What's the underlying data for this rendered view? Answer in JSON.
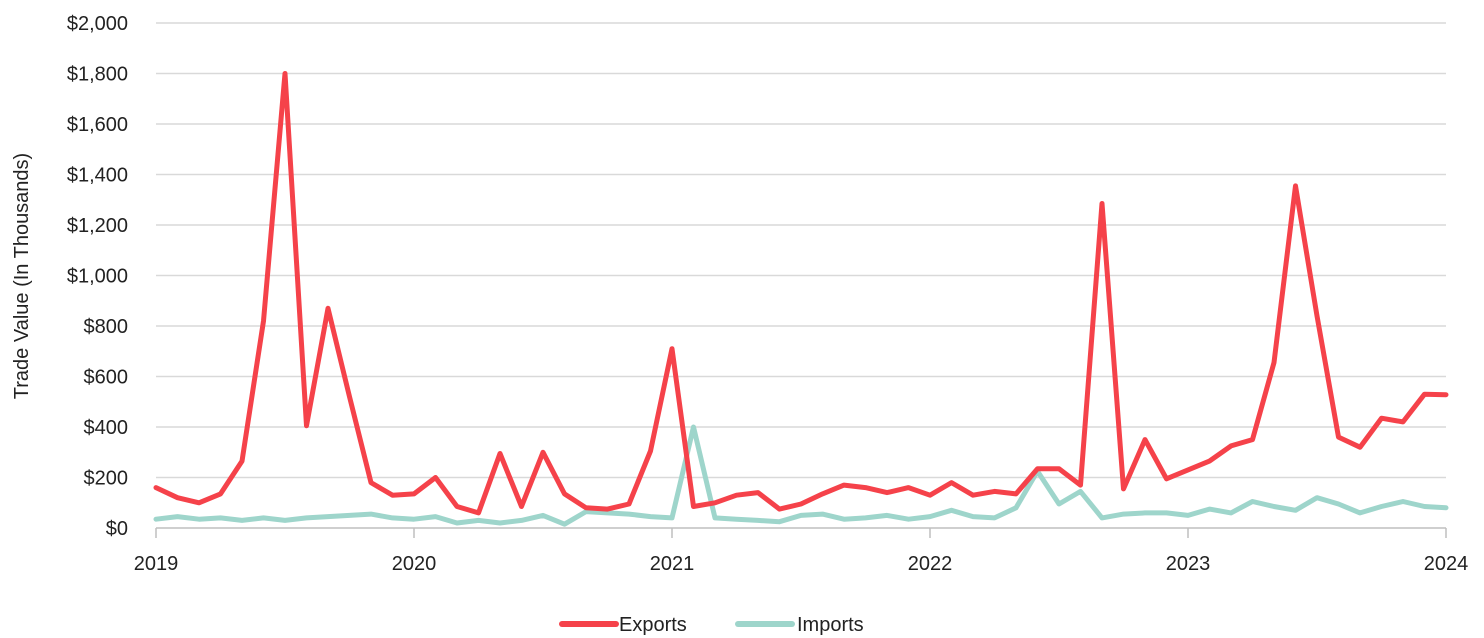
{
  "chart_data": {
    "type": "line",
    "title": "",
    "xlabel": "",
    "ylabel": "Trade Value (In Thousands)",
    "ylim": [
      0,
      2000
    ],
    "yticks": [
      0,
      200,
      400,
      600,
      800,
      1000,
      1200,
      1400,
      1600,
      1800,
      2000
    ],
    "ytick_labels": [
      "$0",
      "$200",
      "$400",
      "$600",
      "$800",
      "$1,000",
      "$1,200",
      "$1,400",
      "$1,600",
      "$1,800",
      "$2,000"
    ],
    "xticks": [
      2019,
      2020,
      2021,
      2022,
      2023,
      2024
    ],
    "xtick_labels": [
      "2019",
      "2020",
      "2021",
      "2022",
      "2023",
      "2024"
    ],
    "xlim": [
      "2019-01",
      "2024-01"
    ],
    "grid": "horizontal",
    "legend_position": "bottom-center",
    "x": [
      "2019-01",
      "2019-02",
      "2019-03",
      "2019-04",
      "2019-05",
      "2019-06",
      "2019-07",
      "2019-08",
      "2019-09",
      "2019-10",
      "2019-11",
      "2019-12",
      "2020-01",
      "2020-02",
      "2020-03",
      "2020-04",
      "2020-05",
      "2020-06",
      "2020-07",
      "2020-08",
      "2020-09",
      "2020-10",
      "2020-11",
      "2020-12",
      "2021-01",
      "2021-02",
      "2021-03",
      "2021-04",
      "2021-05",
      "2021-06",
      "2021-07",
      "2021-08",
      "2021-09",
      "2021-10",
      "2021-11",
      "2021-12",
      "2022-01",
      "2022-02",
      "2022-03",
      "2022-04",
      "2022-05",
      "2022-06",
      "2022-07",
      "2022-08",
      "2022-09",
      "2022-10",
      "2022-11",
      "2022-12",
      "2023-01",
      "2023-02",
      "2023-03",
      "2023-04",
      "2023-05",
      "2023-06",
      "2023-07",
      "2023-08",
      "2023-09",
      "2023-10",
      "2023-11",
      "2023-12",
      "2024-01"
    ],
    "series": [
      {
        "name": "Exports",
        "color": "#f5424a",
        "values": [
          160,
          120,
          100,
          135,
          265,
          820,
          1800,
          405,
          870,
          520,
          180,
          130,
          135,
          200,
          85,
          60,
          295,
          85,
          300,
          135,
          80,
          75,
          95,
          305,
          710,
          85,
          100,
          130,
          140,
          75,
          95,
          135,
          170,
          160,
          140,
          160,
          130,
          180,
          130,
          145,
          135,
          235,
          235,
          170,
          1285,
          155,
          350,
          195,
          230,
          265,
          325,
          350,
          655,
          1355,
          840,
          360,
          320,
          435,
          420,
          530,
          528
        ]
      },
      {
        "name": "Imports",
        "color": "#9ed5cb",
        "values": [
          35,
          45,
          35,
          40,
          30,
          40,
          30,
          40,
          45,
          50,
          55,
          40,
          35,
          45,
          20,
          30,
          20,
          30,
          50,
          15,
          65,
          60,
          55,
          45,
          40,
          400,
          40,
          35,
          30,
          25,
          50,
          55,
          35,
          40,
          50,
          35,
          45,
          70,
          45,
          40,
          80,
          225,
          95,
          145,
          40,
          55,
          60,
          60,
          50,
          75,
          60,
          105,
          85,
          70,
          120,
          95,
          60,
          85,
          105,
          85,
          80
        ]
      }
    ]
  }
}
